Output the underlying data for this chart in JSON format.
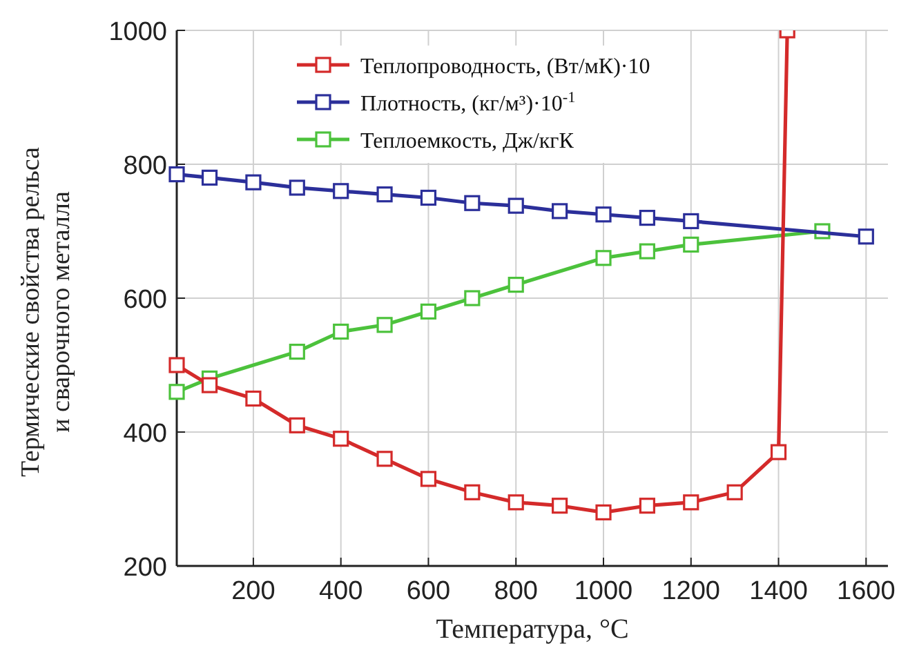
{
  "chart_data": {
    "type": "line",
    "xlabel": "Температура, °C",
    "ylabel": "Термические свойства рельса\nи сварочного металла",
    "xlim": [
      25,
      1650
    ],
    "ylim": [
      200,
      1000
    ],
    "xticks": [
      200,
      400,
      600,
      800,
      1000,
      1200,
      1400,
      1600
    ],
    "yticks": [
      200,
      400,
      600,
      800,
      1000
    ],
    "grid": true,
    "legend": "top left",
    "marker": "square",
    "line_style": "solid",
    "series": [
      {
        "name": "Теплопроводность, (Вт/мК)·10",
        "color": "#d42a2a",
        "x": [
          25,
          100,
          200,
          300,
          400,
          500,
          600,
          700,
          800,
          900,
          1000,
          1100,
          1200,
          1300,
          1400,
          1420
        ],
        "values": [
          500,
          470,
          450,
          410,
          390,
          360,
          330,
          310,
          295,
          290,
          280,
          290,
          295,
          310,
          370,
          1000
        ]
      },
      {
        "name": "Плотность, (кг/м³)·10$^{-1}$",
        "color": "#2b2f9a",
        "x": [
          25,
          100,
          200,
          300,
          400,
          500,
          600,
          700,
          800,
          900,
          1000,
          1100,
          1200,
          1600
        ],
        "values": [
          785,
          780,
          773,
          765,
          760,
          755,
          750,
          742,
          738,
          730,
          725,
          720,
          715,
          692
        ]
      },
      {
        "name": "Теплоемкость, Дж/кгК",
        "color": "#4cc23c",
        "x": [
          25,
          100,
          300,
          400,
          500,
          600,
          700,
          800,
          1000,
          1100,
          1200,
          1500
        ],
        "values": [
          460,
          480,
          520,
          550,
          560,
          580,
          600,
          620,
          660,
          670,
          680,
          700
        ]
      }
    ]
  }
}
